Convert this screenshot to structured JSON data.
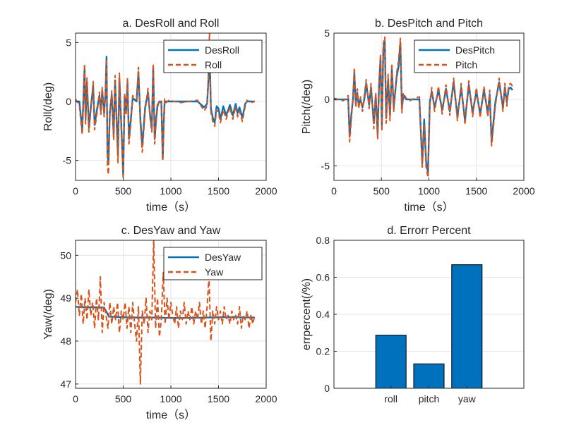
{
  "colors": {
    "des": "#0072BD",
    "act": "#D95319",
    "bar": "#0072BD",
    "grid": "#E6E6E6",
    "axis": "#262626"
  },
  "chart_data": [
    {
      "id": "roll",
      "type": "line",
      "title": "a.  DesRoll and Roll",
      "xlabel": "time（s）",
      "ylabel": "Roll(/deg)",
      "xlim": [
        0,
        2000
      ],
      "ylim": [
        -6.7,
        5.8
      ],
      "xticks": [
        0,
        500,
        1000,
        1500,
        2000
      ],
      "yticks": [
        -5,
        0,
        5
      ],
      "legend": [
        "DesRoll",
        "Roll"
      ],
      "legend_loc": "top-right",
      "series": [
        {
          "name": "DesRoll",
          "style": "solid",
          "x": [
            0,
            40,
            55,
            70,
            85,
            95,
            105,
            120,
            140,
            160,
            185,
            200,
            230,
            250,
            265,
            280,
            300,
            315,
            325,
            335,
            345,
            360,
            380,
            400,
            415,
            430,
            445,
            460,
            480,
            500,
            515,
            530,
            545,
            560,
            580,
            600,
            640,
            660,
            680,
            700,
            730,
            760,
            780,
            800,
            815,
            830,
            845,
            860,
            880,
            900,
            915,
            925,
            935,
            950,
            980,
            1100,
            1280,
            1350,
            1380,
            1395,
            1405,
            1420,
            1440,
            1460,
            1480,
            1500,
            1520,
            1550,
            1580,
            1620,
            1650,
            1680,
            1700,
            1720,
            1750,
            1780,
            1800,
            1840,
            1880
          ],
          "y": [
            0,
            0,
            -1.2,
            -2.4,
            0.8,
            2.8,
            -1.5,
            1.6,
            -2.2,
            -0.5,
            1.3,
            -2.0,
            -0.4,
            0.5,
            -0.8,
            0.9,
            -1.0,
            0.8,
            3.8,
            -4.5,
            -5.2,
            -0.9,
            0.6,
            -2.8,
            1.8,
            -1.5,
            -4.6,
            2.0,
            -2.0,
            -6.2,
            0.4,
            -0.8,
            1.6,
            -3.2,
            -1.5,
            0.3,
            0,
            2.5,
            -1.5,
            -3.8,
            -0.5,
            0.8,
            -1.0,
            -2.2,
            2.9,
            -3.2,
            -1.5,
            -0.3,
            0,
            0,
            -4.9,
            -1.8,
            0,
            0,
            0,
            0,
            0,
            -0.5,
            -0.2,
            1.9,
            5.0,
            -0.6,
            -1.4,
            -1.8,
            -0.4,
            -0.6,
            -1.5,
            -0.4,
            -1.2,
            -0.3,
            -1.2,
            -0.2,
            -1.0,
            -0.5,
            -1.4,
            -0.2,
            0,
            0,
            0
          ]
        },
        {
          "name": "Roll",
          "style": "dashed",
          "x": [
            0,
            40,
            55,
            70,
            85,
            95,
            105,
            120,
            140,
            160,
            185,
            200,
            230,
            250,
            265,
            280,
            300,
            315,
            325,
            335,
            345,
            360,
            380,
            400,
            415,
            430,
            445,
            460,
            480,
            500,
            515,
            530,
            545,
            560,
            580,
            600,
            640,
            660,
            680,
            700,
            730,
            760,
            780,
            800,
            815,
            830,
            845,
            860,
            880,
            900,
            915,
            925,
            935,
            950,
            980,
            1100,
            1280,
            1350,
            1380,
            1395,
            1405,
            1420,
            1440,
            1460,
            1480,
            1500,
            1520,
            1550,
            1580,
            1620,
            1650,
            1680,
            1700,
            1720,
            1750,
            1780,
            1800,
            1840,
            1880
          ],
          "y": [
            0.2,
            -0.3,
            -1.6,
            -2.8,
            1.2,
            3.2,
            -1.9,
            2.0,
            -2.6,
            -0.8,
            1.7,
            -2.4,
            -0.7,
            0.8,
            -1.1,
            1.2,
            -1.3,
            1.1,
            3.6,
            -5.6,
            -6.2,
            -1.2,
            0.9,
            -3.3,
            2.2,
            -1.9,
            -5.2,
            2.4,
            -2.4,
            -6.6,
            0.7,
            -1.2,
            2.0,
            -3.6,
            -1.9,
            0.5,
            0.2,
            2.9,
            -1.9,
            -4.3,
            -0.8,
            1.1,
            -1.3,
            -2.6,
            3.2,
            -3.6,
            -1.8,
            -0.5,
            0.1,
            -0.2,
            -5.0,
            -2.2,
            0.2,
            -0.1,
            0.1,
            -0.1,
            0.1,
            -0.8,
            -0.4,
            2.3,
            5.8,
            -0.9,
            -1.7,
            -2.1,
            -0.7,
            -0.9,
            -1.8,
            -0.7,
            -1.5,
            -0.5,
            -1.5,
            -0.4,
            -1.3,
            -0.8,
            -1.7,
            -0.4,
            0.1,
            -0.1,
            0
          ]
        }
      ]
    },
    {
      "id": "pitch",
      "type": "line",
      "title": "b.  DesPitch and Pitch",
      "xlabel": "time（s）",
      "ylabel": "Pitch(/deg)",
      "xlim": [
        0,
        2000
      ],
      "ylim": [
        -6.1,
        5.0
      ],
      "xticks": [
        0,
        500,
        1000,
        1500,
        2000
      ],
      "yticks": [
        -5,
        0,
        5
      ],
      "legend": [
        "DesPitch",
        "Pitch"
      ],
      "legend_loc": "top-right",
      "series": [
        {
          "name": "DesPitch",
          "style": "solid",
          "x": [
            0,
            100,
            150,
            165,
            180,
            200,
            215,
            230,
            245,
            260,
            280,
            300,
            320,
            340,
            370,
            390,
            420,
            440,
            460,
            475,
            490,
            505,
            520,
            535,
            550,
            570,
            590,
            610,
            630,
            660,
            680,
            700,
            715,
            730,
            760,
            800,
            850,
            900,
            930,
            950,
            970,
            990,
            1010,
            1030,
            1060,
            1100,
            1140,
            1180,
            1220,
            1260,
            1300,
            1340,
            1380,
            1420,
            1460,
            1500,
            1540,
            1580,
            1620,
            1640,
            1660,
            1700,
            1740,
            1780,
            1800,
            1820,
            1840,
            1860,
            1880
          ],
          "y": [
            0,
            0,
            0,
            -2.8,
            -1.4,
            0,
            2.0,
            -0.3,
            0.5,
            -0.4,
            0,
            -0.6,
            0,
            1.2,
            -0.4,
            0.9,
            -1.8,
            0.3,
            -2.6,
            1.1,
            3.0,
            -2.0,
            3.8,
            4.4,
            -1.4,
            1.5,
            -1.2,
            2.3,
            -0.6,
            1.7,
            2.5,
            4.3,
            -0.7,
            0.3,
            0,
            0,
            0,
            0,
            -4.8,
            -1.5,
            -4.7,
            -5.5,
            -0.2,
            0.6,
            -0.6,
            0.7,
            -0.8,
            0.8,
            -0.9,
            1.3,
            -1.3,
            0.9,
            -1.6,
            1.1,
            -1.0,
            0.6,
            -1.1,
            0.7,
            -1.0,
            0.4,
            -3.2,
            -0.2,
            1.3,
            -0.6,
            0.9,
            -0.2,
            0.8,
            0.9,
            0.7
          ]
        },
        {
          "name": "Pitch",
          "style": "dashed",
          "x": [
            0,
            100,
            150,
            165,
            180,
            200,
            215,
            230,
            245,
            260,
            280,
            300,
            320,
            340,
            370,
            390,
            420,
            440,
            460,
            475,
            490,
            505,
            520,
            535,
            550,
            570,
            590,
            610,
            630,
            660,
            680,
            700,
            715,
            730,
            760,
            800,
            850,
            900,
            930,
            950,
            970,
            990,
            1010,
            1030,
            1060,
            1100,
            1140,
            1180,
            1220,
            1260,
            1300,
            1340,
            1380,
            1420,
            1460,
            1500,
            1540,
            1580,
            1620,
            1640,
            1660,
            1700,
            1740,
            1780,
            1800,
            1820,
            1840,
            1860,
            1880
          ],
          "y": [
            0.1,
            -0.1,
            0.3,
            -3.2,
            -1.8,
            0.2,
            2.4,
            -0.6,
            0.8,
            -0.7,
            0.2,
            -0.9,
            0.3,
            1.5,
            -0.7,
            1.2,
            -2.2,
            0.5,
            -3.0,
            1.4,
            3.4,
            -2.4,
            4.2,
            4.7,
            -1.8,
            1.9,
            -1.6,
            2.7,
            -0.9,
            2.0,
            2.9,
            4.6,
            -1.0,
            0.5,
            0.1,
            -0.1,
            0.1,
            0.2,
            -5.1,
            -1.9,
            -5.1,
            -5.9,
            -0.5,
            0.9,
            -0.9,
            1.0,
            -1.1,
            1.1,
            -1.2,
            1.6,
            -1.6,
            1.2,
            -1.9,
            1.4,
            -1.3,
            0.9,
            -1.4,
            1.0,
            -1.3,
            0.7,
            -3.5,
            -0.5,
            1.6,
            -0.9,
            1.2,
            -0.5,
            1.1,
            1.2,
            1.0
          ]
        }
      ]
    },
    {
      "id": "yaw",
      "type": "line",
      "title": "c.  DesYaw and Yaw",
      "xlabel": "time（s）",
      "ylabel": "Yaw(/deg)",
      "xlim": [
        0,
        2000
      ],
      "ylim": [
        46.9,
        50.35
      ],
      "xticks": [
        0,
        500,
        1000,
        1500,
        2000
      ],
      "yticks": [
        47,
        48,
        49,
        50
      ],
      "legend": [
        "DesYaw",
        "Yaw"
      ],
      "legend_loc": "top-right",
      "series": [
        {
          "name": "DesYaw",
          "style": "solid",
          "x": [
            0,
            100,
            200,
            300,
            350,
            450,
            600,
            800,
            1000,
            1200,
            1400,
            1600,
            1800,
            1880
          ],
          "y": [
            48.8,
            48.79,
            48.79,
            48.78,
            48.57,
            48.56,
            48.55,
            48.55,
            48.54,
            48.54,
            48.55,
            48.56,
            48.55,
            48.55
          ]
        },
        {
          "name": "Yaw",
          "style": "dashed",
          "x": [
            0,
            20,
            40,
            60,
            80,
            100,
            120,
            140,
            160,
            180,
            200,
            220,
            240,
            260,
            280,
            300,
            320,
            340,
            360,
            380,
            400,
            420,
            440,
            460,
            480,
            500,
            520,
            540,
            560,
            580,
            600,
            620,
            640,
            660,
            680,
            700,
            720,
            740,
            760,
            780,
            800,
            820,
            840,
            860,
            880,
            900,
            920,
            940,
            960,
            980,
            1000,
            1020,
            1040,
            1060,
            1080,
            1100,
            1120,
            1140,
            1160,
            1180,
            1200,
            1220,
            1240,
            1260,
            1280,
            1300,
            1320,
            1340,
            1360,
            1380,
            1400,
            1420,
            1440,
            1460,
            1480,
            1500,
            1520,
            1540,
            1560,
            1580,
            1600,
            1620,
            1640,
            1660,
            1680,
            1700,
            1720,
            1740,
            1760,
            1780,
            1800,
            1820,
            1840,
            1860,
            1880
          ],
          "y": [
            48.9,
            49.2,
            48.6,
            49.1,
            48.4,
            49.0,
            48.5,
            49.2,
            48.6,
            48.9,
            48.3,
            49.0,
            48.5,
            49.5,
            48.2,
            48.9,
            48.6,
            48.3,
            48.9,
            48.4,
            48.8,
            48.5,
            48.9,
            48.2,
            48.7,
            48.5,
            48.9,
            48.3,
            48.8,
            48.2,
            48.9,
            48.4,
            48.0,
            48.8,
            47.0,
            48.7,
            48.4,
            49.0,
            48.2,
            48.7,
            48.5,
            50.35,
            48.3,
            49.0,
            48.1,
            48.5,
            49.6,
            48.4,
            49.0,
            48.5,
            48.9,
            48.6,
            48.4,
            48.8,
            48.3,
            48.7,
            48.5,
            48.9,
            48.4,
            48.7,
            48.5,
            48.8,
            48.4,
            48.7,
            48.5,
            48.9,
            48.4,
            48.7,
            48.3,
            48.8,
            49.5,
            48.0,
            48.7,
            48.4,
            48.8,
            48.5,
            48.7,
            48.4,
            48.8,
            48.5,
            48.6,
            48.4,
            48.7,
            48.5,
            48.6,
            48.4,
            48.8,
            48.3,
            48.6,
            48.5,
            48.7,
            48.3,
            48.6,
            48.4,
            48.6
          ]
        }
      ]
    },
    {
      "id": "err",
      "type": "bar",
      "title": "d. Errorr Percent",
      "xlabel": "",
      "ylabel": "errpercent(/%)",
      "categories": [
        "roll",
        "pitch",
        "yaw"
      ],
      "values": [
        0.287,
        0.132,
        0.668
      ],
      "ylim": [
        0,
        0.8
      ],
      "yticks": [
        0,
        0.2,
        0.4,
        0.6,
        0.8
      ]
    }
  ]
}
